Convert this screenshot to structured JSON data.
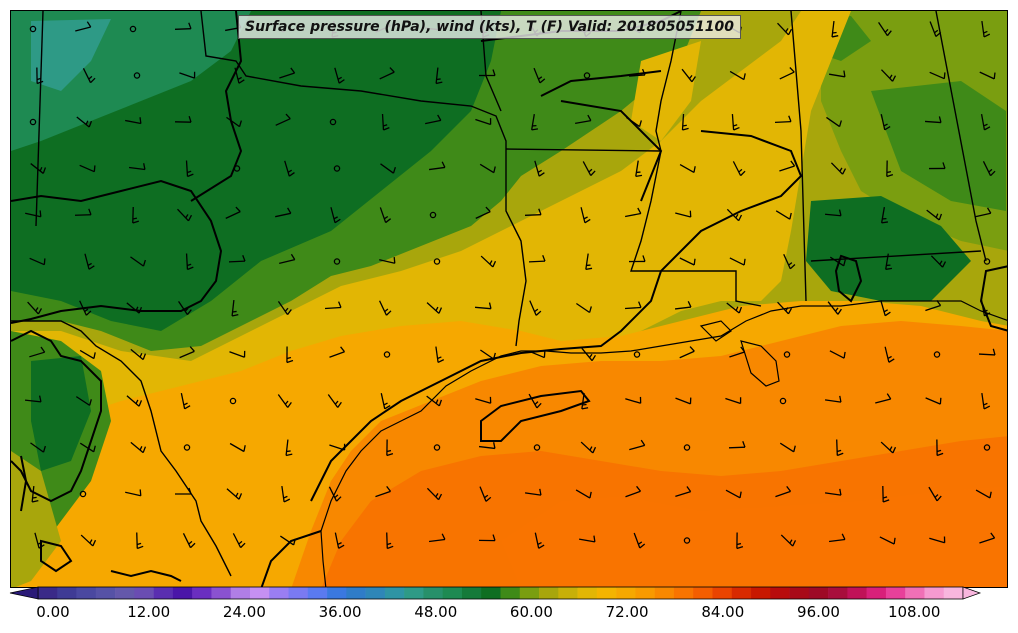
{
  "map": {
    "title": "Surface pressure (hPa), wind (kts), T (F) Valid: 201805051100",
    "field": "temperature",
    "colorbar": {
      "min": 0,
      "max": 116,
      "step": 2,
      "extend": "both",
      "tick_labels": [
        "0.00",
        "12.00",
        "24.00",
        "36.00",
        "48.00",
        "60.00",
        "72.00",
        "84.00",
        "96.00",
        "108.00"
      ],
      "colors": [
        "#3a2a88",
        "#3f3b95",
        "#4a48a0",
        "#5652a6",
        "#6458aa",
        "#6a4db2",
        "#5a2eb0",
        "#4a16a8",
        "#6a2ec0",
        "#8a52d0",
        "#b07ee6",
        "#c590f2",
        "#9a7ef2",
        "#7a7af2",
        "#5a7af0",
        "#3a78e0",
        "#2f7cc8",
        "#2e86b8",
        "#2e94a4",
        "#2e9a86",
        "#27906a",
        "#1e8a52",
        "#157a3a",
        "#0e6e22",
        "#3f8a18",
        "#7a9e10",
        "#a8a60c",
        "#c8b008",
        "#e2b604",
        "#f4b400",
        "#f6a800",
        "#f89a00",
        "#f88800",
        "#f87400",
        "#f45e00",
        "#ea4400",
        "#d82a00",
        "#c81800",
        "#b80c0c",
        "#a80a18",
        "#9e0a26",
        "#a80e3c",
        "#c01258",
        "#d8207a",
        "#e8409a",
        "#f070b6",
        "#f69ad0",
        "#f8b6de"
      ]
    },
    "legend_note": ""
  },
  "icons": {
    "wind_barb": "wind-barb-icon",
    "calm_circle": "calm-wind-circle-icon"
  }
}
